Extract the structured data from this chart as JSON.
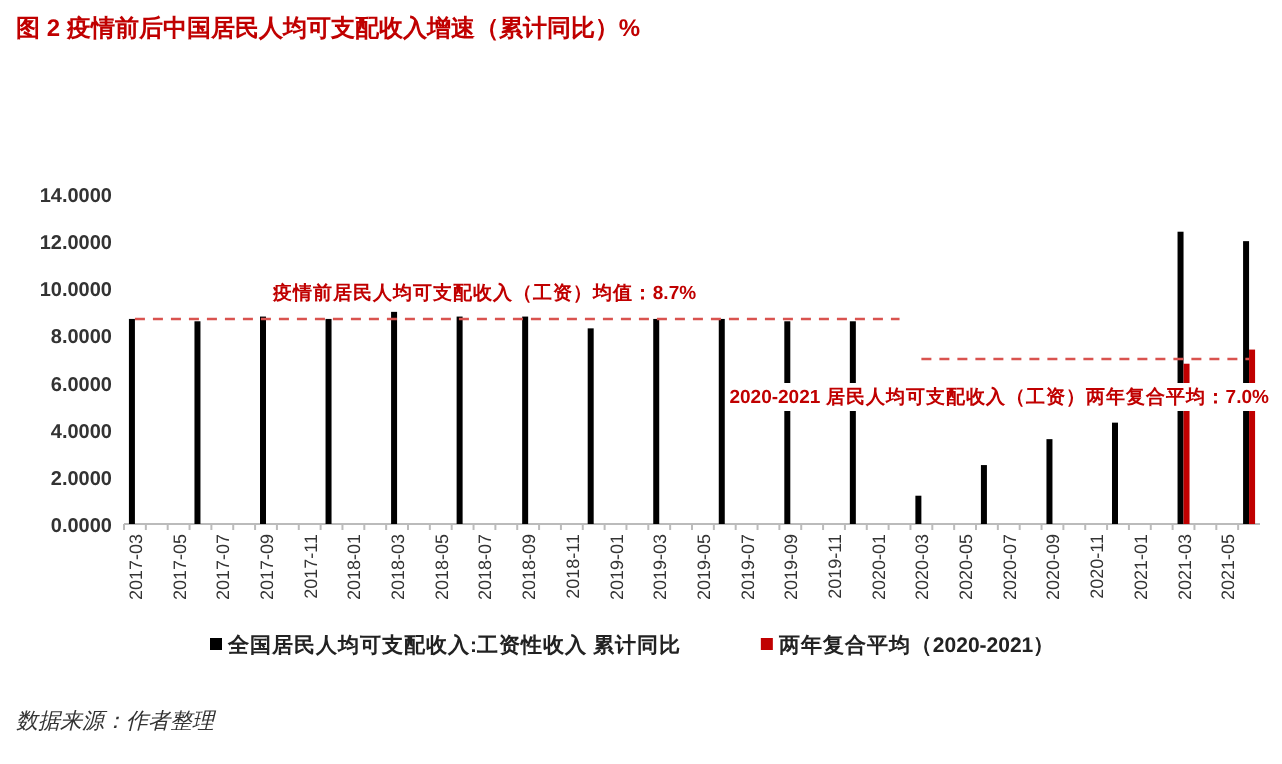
{
  "chart_data": {
    "type": "bar",
    "title": "图 2 疫情前后中国居民人均可支配收入增速（累计同比）%",
    "categories": [
      "2017-03",
      null,
      "2017-05",
      null,
      "2017-07",
      null,
      "2017-09",
      null,
      "2017-11",
      null,
      "2018-01",
      null,
      "2018-03",
      null,
      "2018-05",
      null,
      "2018-07",
      null,
      "2018-09",
      null,
      "2018-11",
      null,
      "2019-01",
      null,
      "2019-03",
      null,
      "2019-05",
      null,
      "2019-07",
      null,
      "2019-09",
      null,
      "2019-11",
      null,
      "2020-01",
      null,
      "2020-03",
      null,
      "2020-05",
      null,
      "2020-07",
      null,
      "2020-09",
      null,
      "2020-11",
      null,
      "2021-01",
      null,
      "2021-03",
      null,
      "2021-05",
      null
    ],
    "series": [
      {
        "name": "全国居民人均可支配收入:工资性收入 累计同比",
        "color": "#000000",
        "values": [
          8.7,
          null,
          null,
          8.6,
          null,
          null,
          8.8,
          null,
          null,
          8.7,
          null,
          null,
          9.0,
          null,
          null,
          8.8,
          null,
          null,
          8.8,
          null,
          null,
          8.3,
          null,
          null,
          8.7,
          null,
          null,
          8.7,
          null,
          null,
          8.6,
          null,
          null,
          8.6,
          null,
          null,
          1.2,
          null,
          null,
          2.5,
          null,
          null,
          3.6,
          null,
          null,
          4.3,
          null,
          null,
          12.4,
          null,
          null,
          12.0
        ]
      },
      {
        "name": "两年复合平均（2020-2021）",
        "color": "#c00000",
        "values": [
          null,
          null,
          null,
          null,
          null,
          null,
          null,
          null,
          null,
          null,
          null,
          null,
          null,
          null,
          null,
          null,
          null,
          null,
          null,
          null,
          null,
          null,
          null,
          null,
          null,
          null,
          null,
          null,
          null,
          null,
          null,
          null,
          null,
          null,
          null,
          null,
          null,
          null,
          null,
          null,
          null,
          null,
          null,
          null,
          null,
          null,
          null,
          null,
          6.8,
          null,
          null,
          7.4
        ]
      },
      {
        "type": "line",
        "line_style": "dashed",
        "color": "#d9534f",
        "values": [
          8.7,
          8.7,
          8.7,
          8.7,
          8.7,
          8.7,
          8.7,
          8.7,
          8.7,
          8.7,
          8.7,
          8.7,
          8.7,
          8.7,
          8.7,
          8.7,
          8.7,
          8.7,
          8.7,
          8.7,
          8.7,
          8.7,
          8.7,
          8.7,
          8.7,
          8.7,
          8.7,
          8.7,
          8.7,
          8.7,
          8.7,
          8.7,
          8.7,
          8.7,
          8.7,
          8.7,
          null,
          null,
          null,
          null,
          null,
          null,
          null,
          null,
          null,
          null,
          null,
          null,
          null,
          null,
          null,
          null
        ]
      },
      {
        "type": "line",
        "line_style": "dashed",
        "color": "#d9534f",
        "values": [
          null,
          null,
          null,
          null,
          null,
          null,
          null,
          null,
          null,
          null,
          null,
          null,
          null,
          null,
          null,
          null,
          null,
          null,
          null,
          null,
          null,
          null,
          null,
          null,
          null,
          null,
          null,
          null,
          null,
          null,
          null,
          null,
          null,
          null,
          null,
          null,
          7.0,
          7.0,
          7.0,
          7.0,
          7.0,
          7.0,
          7.0,
          7.0,
          7.0,
          7.0,
          7.0,
          7.0,
          7.0,
          7.0,
          7.0,
          7.0
        ]
      }
    ],
    "ylim": [
      0,
      14
    ],
    "yticks": [
      {
        "value": 0,
        "label": "0.0000"
      },
      {
        "value": 2,
        "label": "2.0000"
      },
      {
        "value": 4,
        "label": "4.0000"
      },
      {
        "value": 6,
        "label": "6.0000"
      },
      {
        "value": 8,
        "label": "8.0000"
      },
      {
        "value": 10,
        "label": "10.0000"
      },
      {
        "value": 12,
        "label": "12.0000"
      },
      {
        "value": 14,
        "label": "14.0000"
      }
    ],
    "legend": "bottom",
    "annotations": [
      {
        "text": "疫情前居民人均可支配收入（工资）均值：8.7%",
        "x": "2018-07",
        "y": 8.7
      },
      {
        "text": "2020-2021 居民人均可支配收入（工资）两年复合平均：7.0%",
        "x": "2020-07",
        "y": 7.0
      },
      "数据来源：作者整理"
    ]
  }
}
